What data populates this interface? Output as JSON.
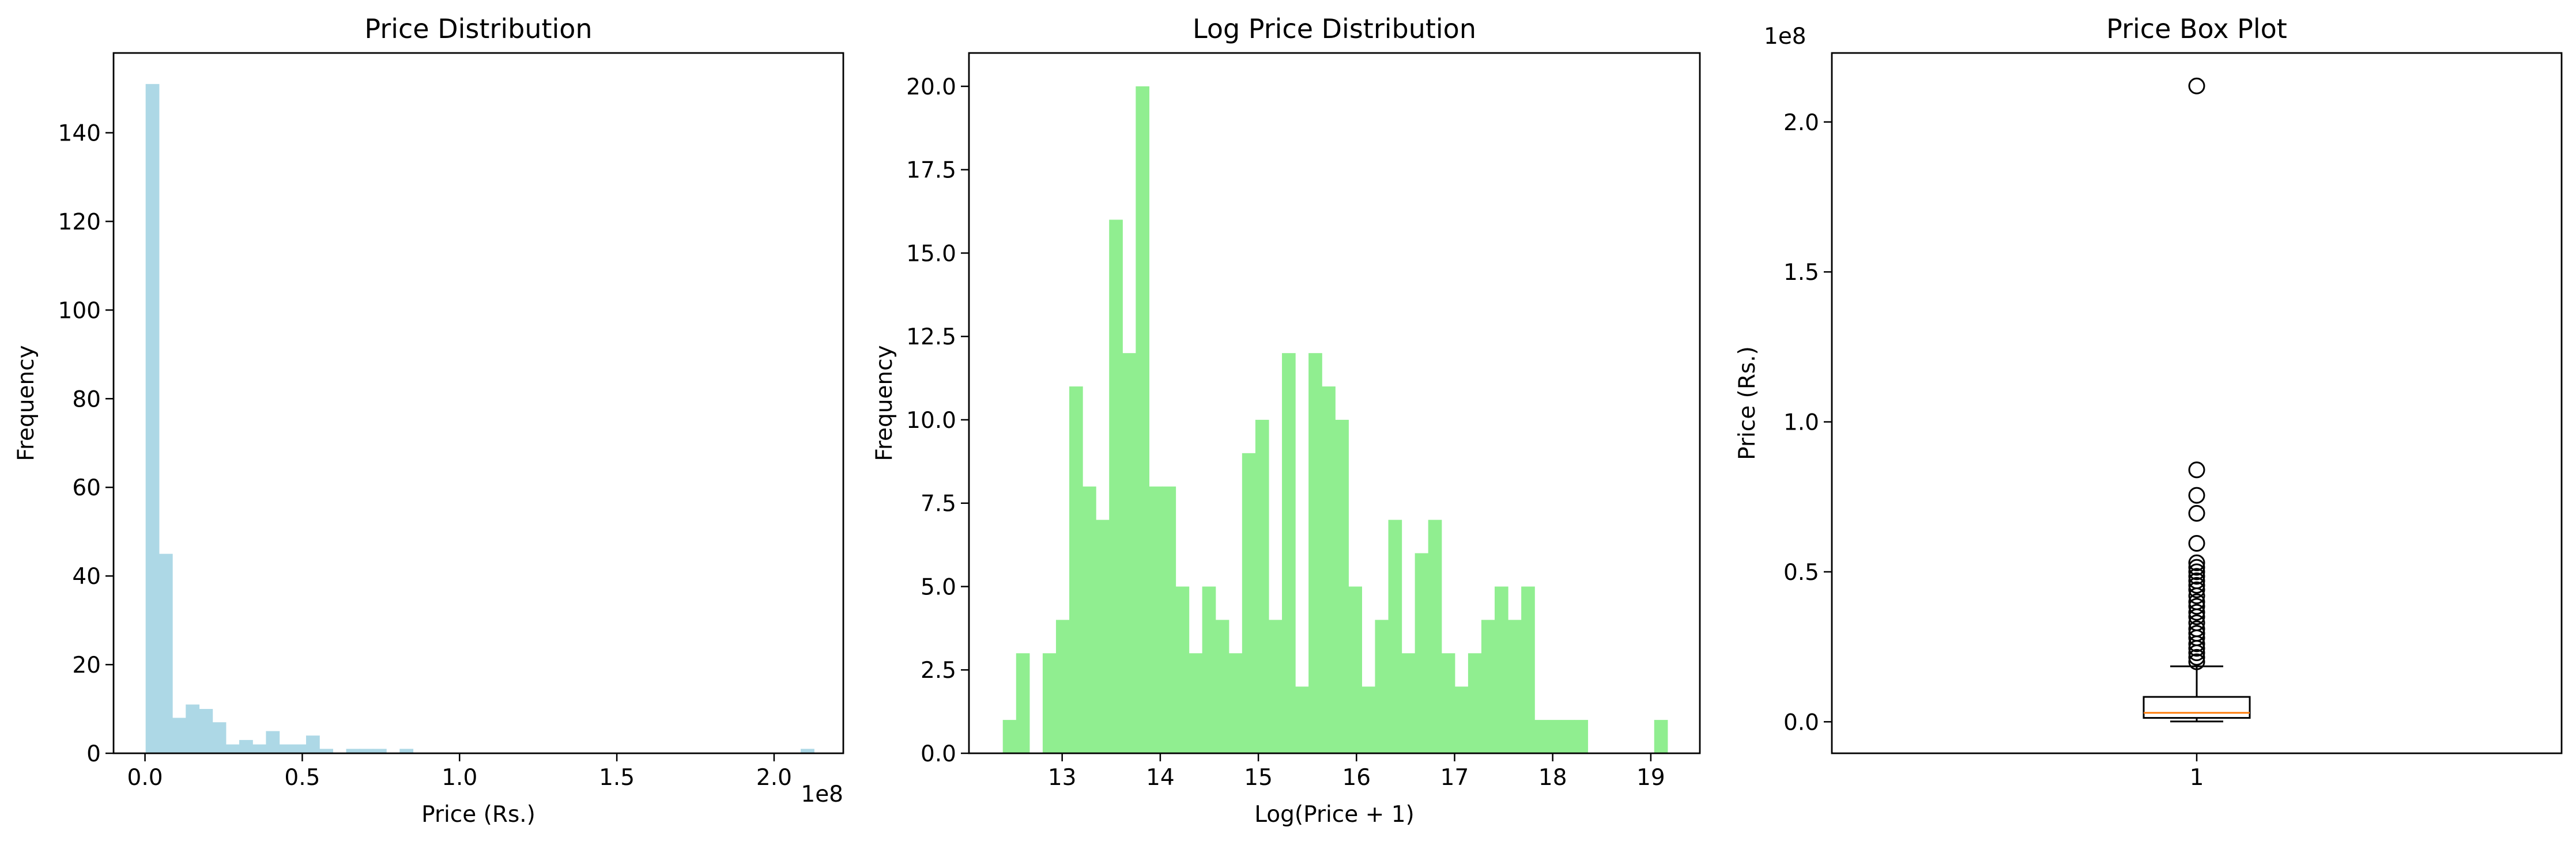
{
  "chart_data": [
    {
      "type": "bar",
      "title": "Price Distribution",
      "xlabel": "Price (Rs.)",
      "ylabel": "Frequency",
      "x_offset_label": "1e8",
      "bar_color": "#add8e6",
      "xlim": [
        -0.1,
        2.22
      ],
      "ylim": [
        0,
        158
      ],
      "x_ticks": [
        0.0,
        0.5,
        1.0,
        1.5,
        2.0
      ],
      "x_tick_labels": [
        "0.0",
        "0.5",
        "1.0",
        "1.5",
        "2.0"
      ],
      "y_ticks": [
        0,
        20,
        40,
        60,
        80,
        100,
        120,
        140
      ],
      "y_tick_labels": [
        "0",
        "20",
        "40",
        "60",
        "80",
        "100",
        "120",
        "140"
      ],
      "bin_start": 0.002,
      "bin_width": 0.0425,
      "values": [
        151,
        45,
        8,
        11,
        10,
        7,
        2,
        3,
        2,
        5,
        2,
        2,
        4,
        1,
        0,
        1,
        1,
        1,
        0,
        1,
        0,
        0,
        0,
        0,
        0,
        0,
        0,
        0,
        0,
        0,
        0,
        0,
        0,
        0,
        0,
        0,
        0,
        0,
        0,
        0,
        0,
        0,
        0,
        0,
        0,
        0,
        0,
        0,
        0,
        1
      ]
    },
    {
      "type": "bar",
      "title": "Log Price Distribution",
      "xlabel": "Log(Price + 1)",
      "ylabel": "Frequency",
      "bar_color": "#90ee90",
      "xlim": [
        12.05,
        19.5
      ],
      "ylim": [
        0,
        21
      ],
      "x_ticks": [
        13,
        14,
        15,
        16,
        17,
        18,
        19
      ],
      "x_tick_labels": [
        "13",
        "14",
        "15",
        "16",
        "17",
        "18",
        "19"
      ],
      "y_ticks": [
        0,
        2.5,
        5,
        7.5,
        10,
        12.5,
        15,
        17.5,
        20
      ],
      "y_tick_labels": [
        "0.0",
        "2.5",
        "5.0",
        "7.5",
        "10.0",
        "12.5",
        "15.0",
        "17.5",
        "20.0"
      ],
      "bin_start": 12.395,
      "bin_width": 0.1355,
      "values": [
        1,
        3,
        0,
        3,
        4,
        11,
        8,
        7,
        16,
        12,
        20,
        8,
        8,
        5,
        3,
        5,
        4,
        3,
        9,
        10,
        4,
        12,
        2,
        12,
        11,
        10,
        5,
        2,
        4,
        7,
        3,
        6,
        7,
        3,
        2,
        3,
        4,
        5,
        4,
        5,
        1,
        1,
        1,
        1,
        0,
        0,
        0,
        0,
        0,
        1
      ]
    },
    {
      "type": "box",
      "title": "Price Box Plot",
      "xlabel": "",
      "ylabel": "Price (Rs.)",
      "y_offset_label": "1e8",
      "median_color": "#ff7f0e",
      "xlim": [
        0.5,
        1.5
      ],
      "ylim": [
        -0.105,
        2.23
      ],
      "x_ticks": [
        1
      ],
      "x_tick_labels": [
        "1"
      ],
      "y_ticks": [
        0.0,
        0.5,
        1.0,
        1.5,
        2.0
      ],
      "y_tick_labels": [
        "0.0",
        "0.5",
        "1.0",
        "1.5",
        "2.0"
      ],
      "box": {
        "position": 1,
        "whisker_low": 0.001,
        "q1": 0.013,
        "median": 0.03,
        "q3": 0.083,
        "whisker_high": 0.185
      },
      "outliers": [
        2.12,
        0.84,
        0.755,
        0.695,
        0.595,
        0.53,
        0.515,
        0.5,
        0.485,
        0.47,
        0.455,
        0.44,
        0.42,
        0.4,
        0.385,
        0.365,
        0.35,
        0.33,
        0.31,
        0.295,
        0.28,
        0.26,
        0.245,
        0.23,
        0.215,
        0.2
      ]
    }
  ]
}
